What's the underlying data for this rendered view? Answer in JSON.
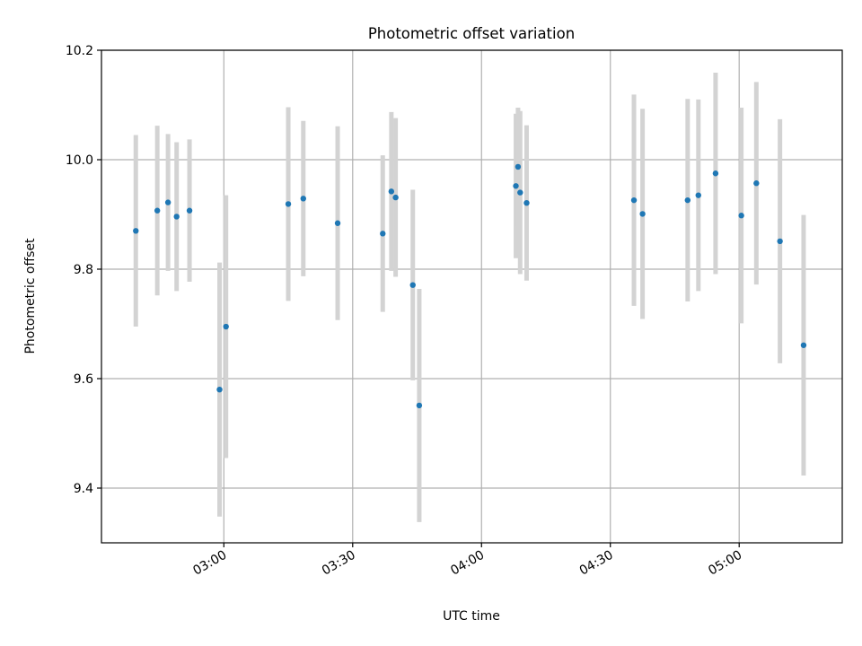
{
  "chart_data": {
    "type": "scatter",
    "title": "Photometric offset variation",
    "xlabel": "UTC time",
    "ylabel": "Photometric offset",
    "xlim": [
      "02:31:30",
      "05:24:00"
    ],
    "ylim": [
      9.3,
      10.2
    ],
    "x_ticks": [
      "03:00",
      "03:30",
      "04:00",
      "04:30",
      "05:00"
    ],
    "y_ticks": [
      9.4,
      9.6,
      9.8,
      10.0,
      10.2
    ],
    "y_tick_labels": [
      "9.4",
      "9.6",
      "9.8",
      "10.0",
      "10.2"
    ],
    "grid": true,
    "colors": {
      "point": "#1f77b4",
      "errorbar": "#d3d3d3",
      "grid": "#b0b0b0"
    },
    "points": [
      {
        "x": "02:39:30",
        "y": 9.87,
        "err": 0.175
      },
      {
        "x": "02:44:30",
        "y": 9.907,
        "err": 0.155
      },
      {
        "x": "02:47:00",
        "y": 9.922,
        "err": 0.125
      },
      {
        "x": "02:49:00",
        "y": 9.896,
        "err": 0.136
      },
      {
        "x": "02:52:00",
        "y": 9.907,
        "err": 0.13
      },
      {
        "x": "02:59:00",
        "y": 9.58,
        "err": 0.232
      },
      {
        "x": "03:00:30",
        "y": 9.695,
        "err": 0.24
      },
      {
        "x": "03:15:00",
        "y": 9.919,
        "err": 0.177
      },
      {
        "x": "03:18:30",
        "y": 9.929,
        "err": 0.142
      },
      {
        "x": "03:26:30",
        "y": 9.884,
        "err": 0.177
      },
      {
        "x": "03:37:00",
        "y": 9.865,
        "err": 0.143
      },
      {
        "x": "03:39:00",
        "y": 9.942,
        "err": 0.145
      },
      {
        "x": "03:40:00",
        "y": 9.931,
        "err": 0.145
      },
      {
        "x": "03:44:00",
        "y": 9.771,
        "err": 0.174
      },
      {
        "x": "03:45:30",
        "y": 9.551,
        "err": 0.213
      },
      {
        "x": "04:08:00",
        "y": 9.952,
        "err": 0.132
      },
      {
        "x": "04:08:30",
        "y": 9.987,
        "err": 0.108
      },
      {
        "x": "04:09:00",
        "y": 9.94,
        "err": 0.149
      },
      {
        "x": "04:10:30",
        "y": 9.921,
        "err": 0.142
      },
      {
        "x": "04:35:30",
        "y": 9.926,
        "err": 0.193
      },
      {
        "x": "04:37:30",
        "y": 9.901,
        "err": 0.192
      },
      {
        "x": "04:48:00",
        "y": 9.926,
        "err": 0.185
      },
      {
        "x": "04:50:30",
        "y": 9.935,
        "err": 0.175
      },
      {
        "x": "04:54:30",
        "y": 9.975,
        "err": 0.184
      },
      {
        "x": "05:00:30",
        "y": 9.898,
        "err": 0.197
      },
      {
        "x": "05:04:00",
        "y": 9.957,
        "err": 0.185
      },
      {
        "x": "05:09:30",
        "y": 9.851,
        "err": 0.223
      },
      {
        "x": "05:15:00",
        "y": 9.661,
        "err": 0.238
      }
    ]
  }
}
